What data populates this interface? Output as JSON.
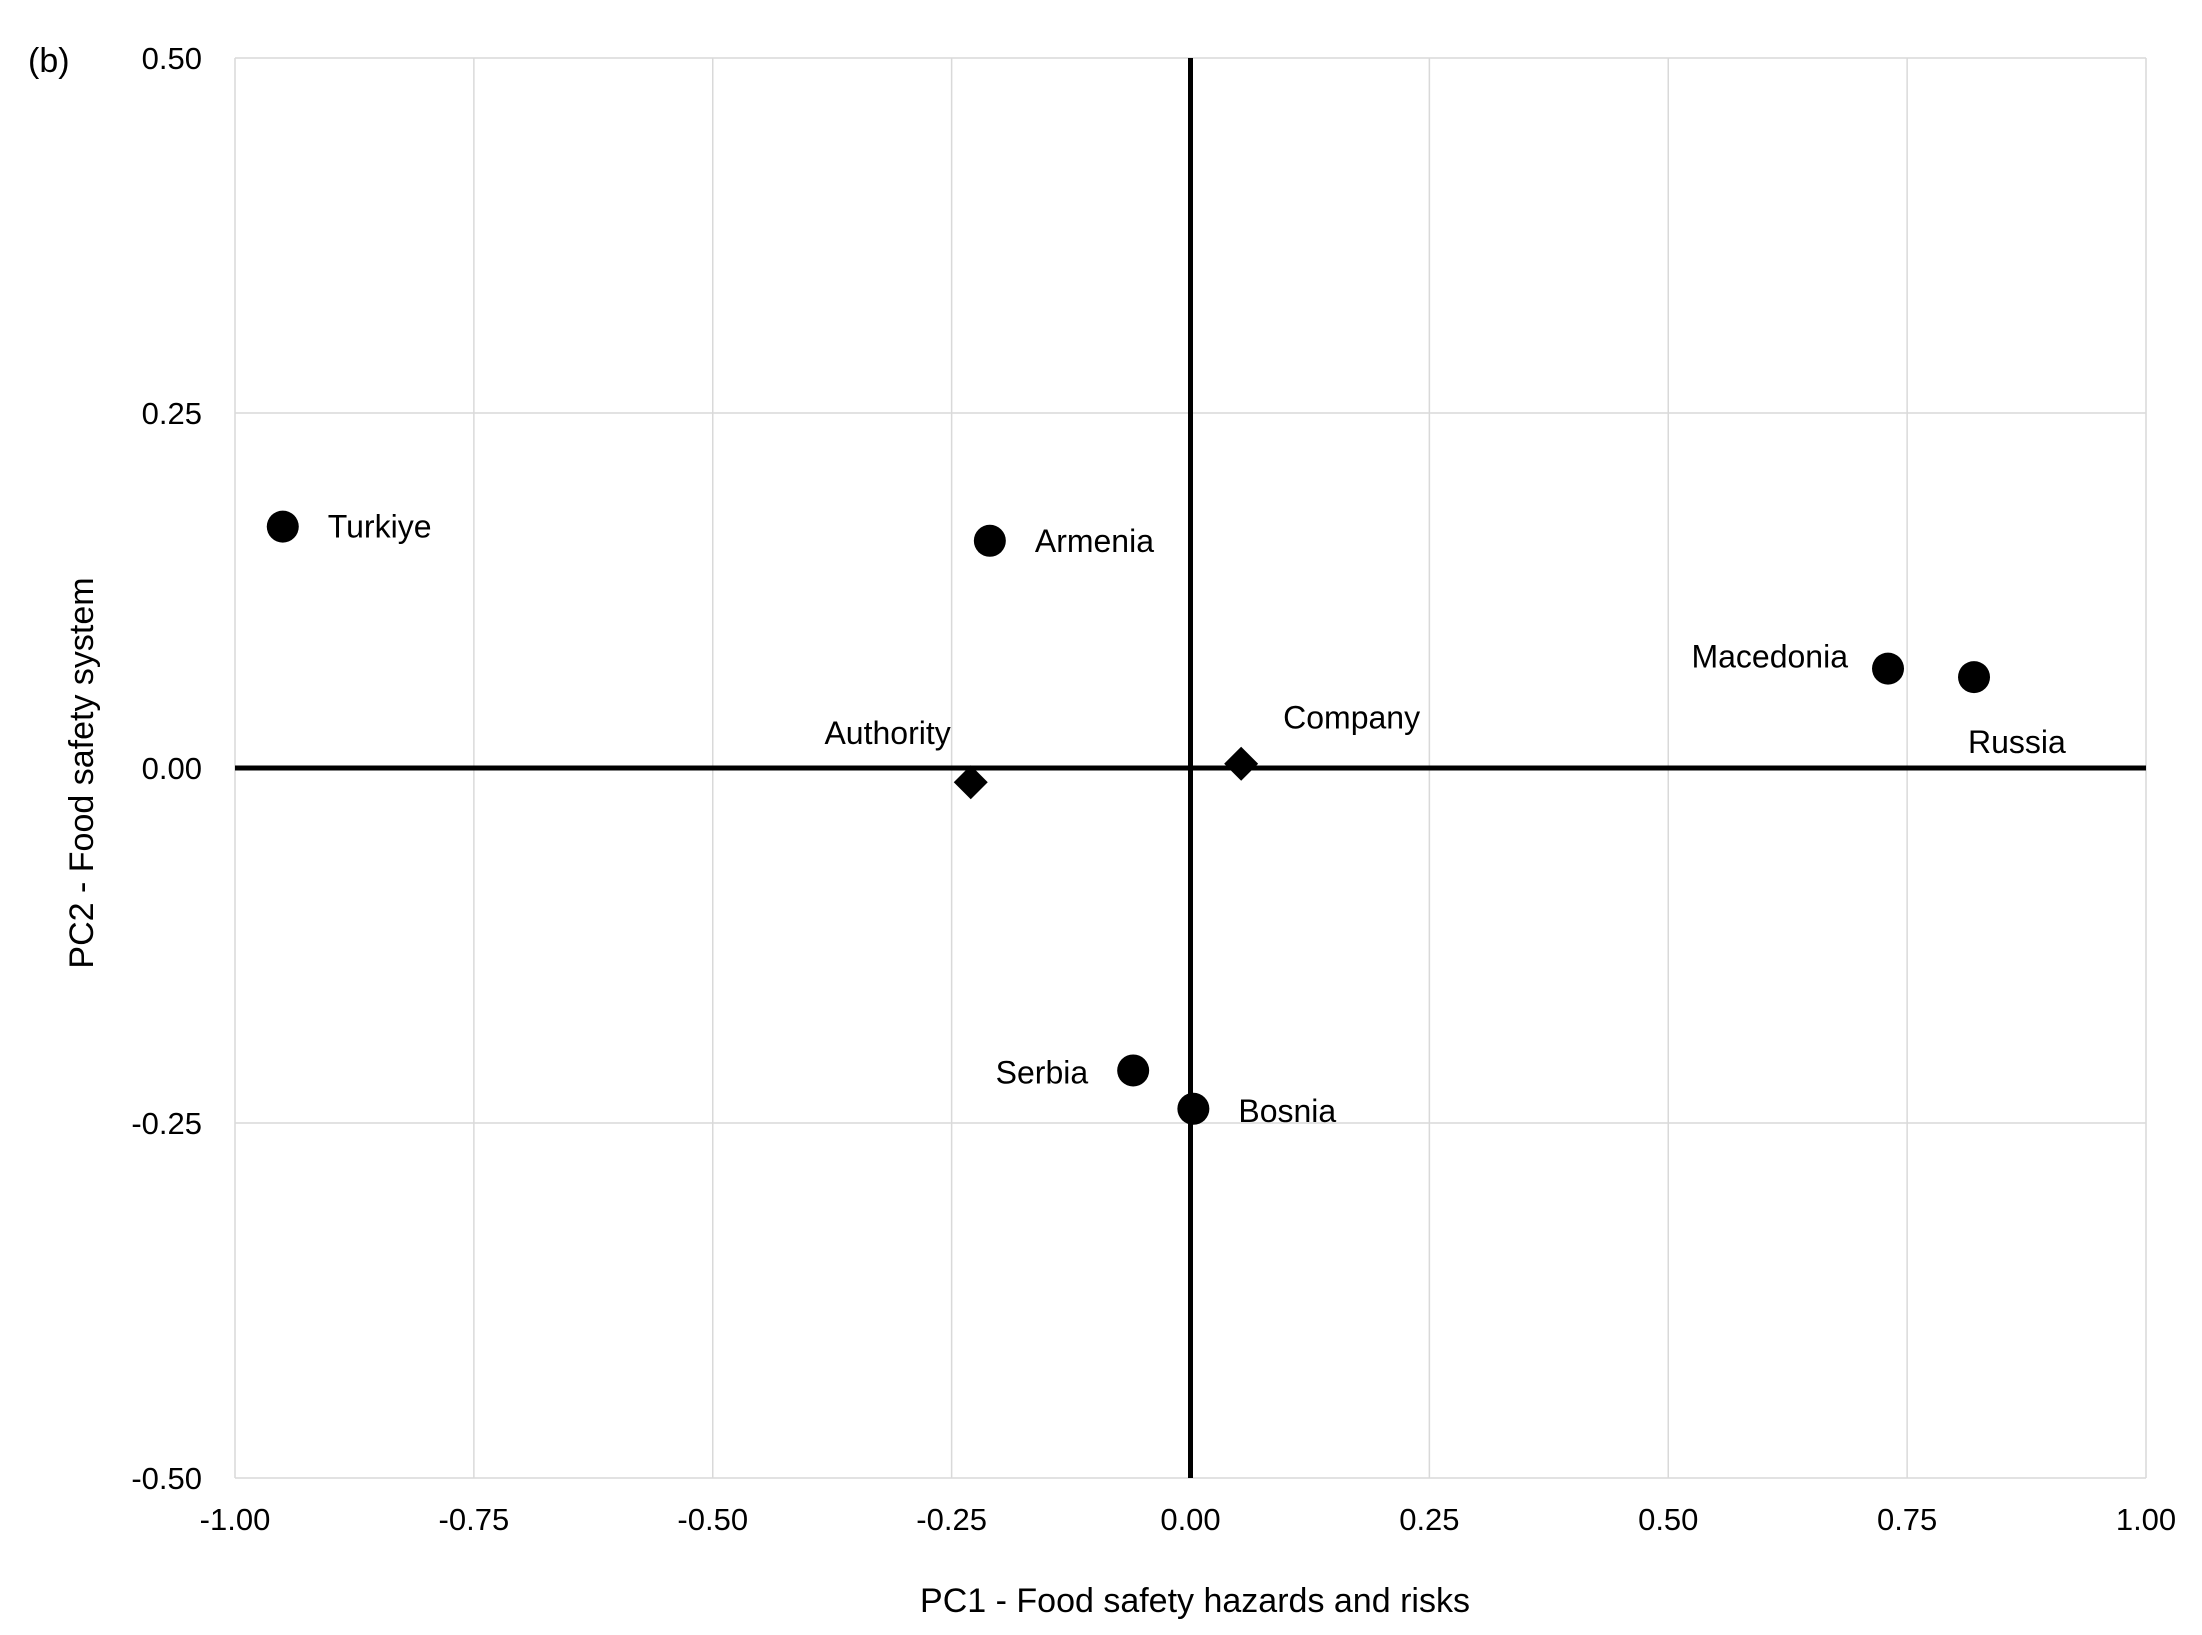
{
  "chart_data": {
    "type": "scatter",
    "panel_label": "(b)",
    "xlabel": "PC1 - Food safety hazards and risks",
    "ylabel": "PC2 - Food safety system",
    "xlim": [
      -1.0,
      1.0
    ],
    "ylim": [
      -0.5,
      0.5
    ],
    "x_ticks": [
      "-1.00",
      "-0.75",
      "-0.50",
      "-0.25",
      "0.00",
      "0.25",
      "0.50",
      "0.75",
      "1.00"
    ],
    "y_ticks": [
      "0.50",
      "0.25",
      "0.00",
      "-0.25",
      "-0.50"
    ],
    "grid": "vertical",
    "colors": {
      "points": "#000000",
      "grid": "#d9d9d9",
      "axes": "#000000"
    },
    "series": [
      {
        "marker": "circle",
        "points": [
          {
            "label": "Turkiye",
            "x": -0.95,
            "y": 0.17
          },
          {
            "label": "Armenia",
            "x": -0.21,
            "y": 0.16
          },
          {
            "label": "Macedonia",
            "x": 0.73,
            "y": 0.07
          },
          {
            "label": "Russia",
            "x": 0.82,
            "y": 0.064
          },
          {
            "label": "Serbia",
            "x": -0.06,
            "y": -0.213
          },
          {
            "label": "Bosnia",
            "x": 0.003,
            "y": -0.24
          }
        ]
      },
      {
        "marker": "diamond",
        "points": [
          {
            "label": "Authority",
            "x": -0.23,
            "y": -0.01
          },
          {
            "label": "Company",
            "x": 0.053,
            "y": 0.003
          }
        ]
      }
    ]
  }
}
